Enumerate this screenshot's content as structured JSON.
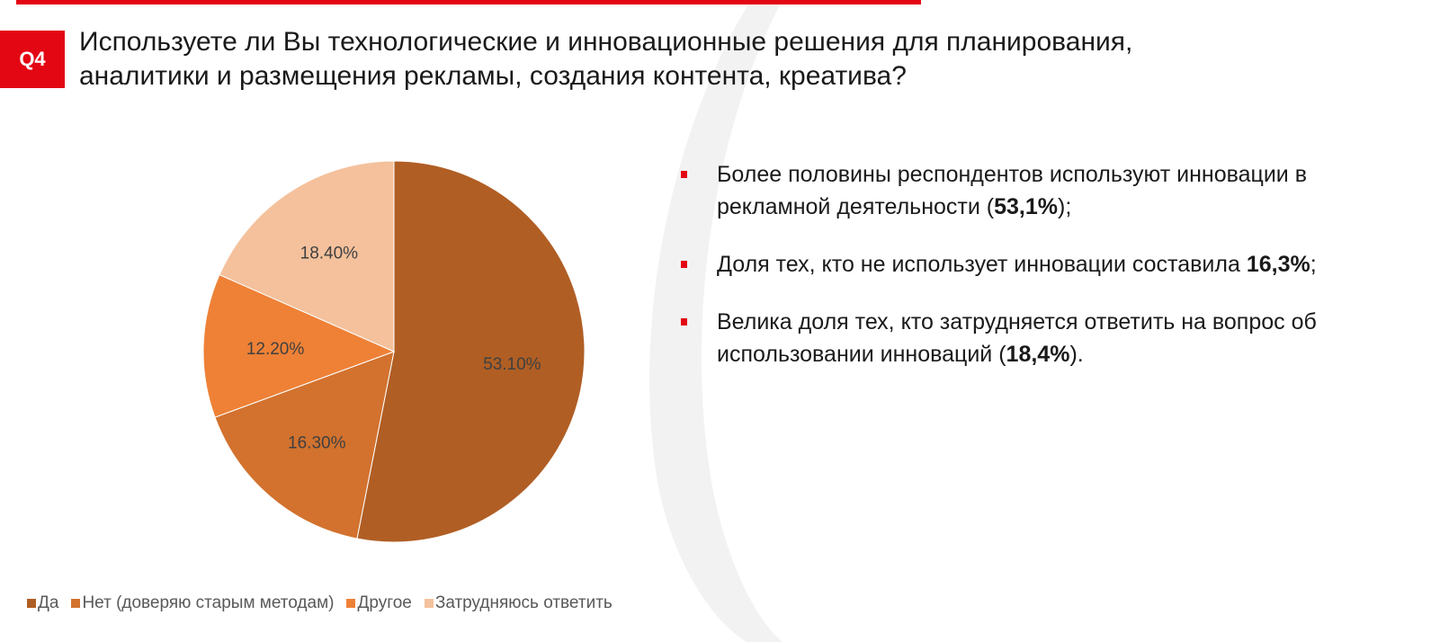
{
  "header": {
    "badge": "Q4",
    "question_lines": [
      "Используете ли Вы технологические и инновационные решения для планирования,",
      "аналитики и размещения рекламы, создания контента, креатива?"
    ]
  },
  "colors": {
    "accent": "#e30613",
    "swoosh": "#f2f2f2"
  },
  "chart_data": {
    "type": "pie",
    "title": "",
    "start_angle_deg": 0,
    "direction": "clockwise",
    "legend_position": "bottom-left",
    "slices": [
      {
        "name": "Да",
        "value": 53.1,
        "label": "53.10%",
        "color": "#b05e24"
      },
      {
        "name": "Нет (доверяю старым методам)",
        "value": 16.3,
        "label": "16.30%",
        "color": "#d2722e"
      },
      {
        "name": "Другое",
        "value": 12.2,
        "label": "12.20%",
        "color": "#ee8136"
      },
      {
        "name": "Затрудняюсь ответить",
        "value": 18.4,
        "label": "18.40%",
        "color": "#f4c19c"
      }
    ]
  },
  "bullets": [
    {
      "before": "Более половины респондентов используют инновации в рекламной деятельности (",
      "bold": "53,1%",
      "after": ");"
    },
    {
      "before": "Доля тех, кто не использует инновации составила ",
      "bold": "16,3%",
      "after": ";"
    },
    {
      "before": "Велика доля тех, кто затрудняется ответить на вопрос об использовании инноваций (",
      "bold": "18,4%",
      "after": ")."
    }
  ]
}
